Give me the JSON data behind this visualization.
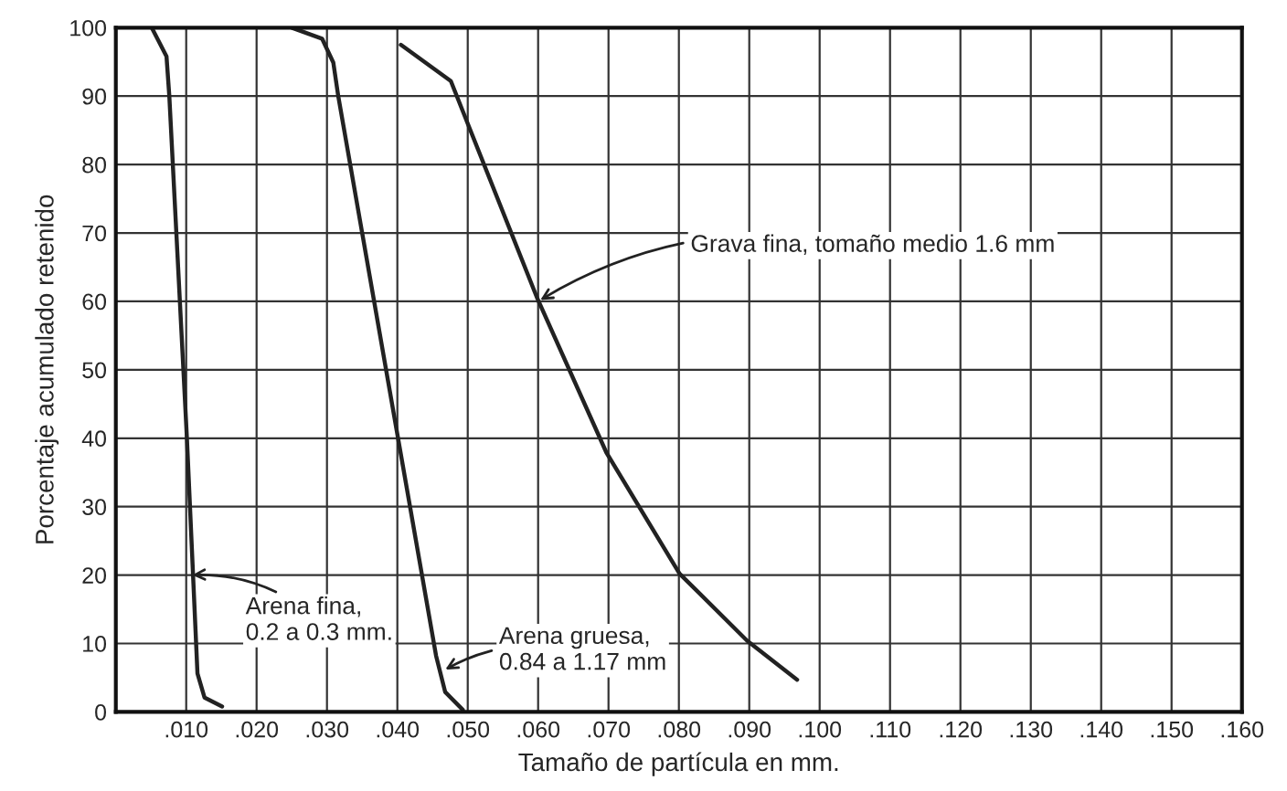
{
  "chart_data": {
    "type": "line",
    "xlabel": "Tamaño de partícula en mm.",
    "ylabel": "Porcentaje acumulado retenido",
    "xlim": [
      0,
      0.16
    ],
    "ylim": [
      0,
      100
    ],
    "xticks": [
      {
        "value": 0.01,
        "label": ".010"
      },
      {
        "value": 0.02,
        "label": ".020"
      },
      {
        "value": 0.03,
        "label": ".030"
      },
      {
        "value": 0.04,
        "label": ".040"
      },
      {
        "value": 0.05,
        "label": ".050"
      },
      {
        "value": 0.06,
        "label": ".060"
      },
      {
        "value": 0.07,
        "label": ".070"
      },
      {
        "value": 0.08,
        "label": ".080"
      },
      {
        "value": 0.09,
        "label": ".090"
      },
      {
        "value": 0.1,
        "label": ".100"
      },
      {
        "value": 0.11,
        "label": ".110"
      },
      {
        "value": 0.12,
        "label": ".120"
      },
      {
        "value": 0.13,
        "label": ".130"
      },
      {
        "value": 0.14,
        "label": ".140"
      },
      {
        "value": 0.15,
        "label": ".150"
      },
      {
        "value": 0.16,
        "label": ".160"
      }
    ],
    "yticks": [
      0,
      10,
      20,
      30,
      40,
      50,
      60,
      70,
      80,
      90,
      100
    ],
    "grid": true,
    "marker": "none",
    "line_style": "solid",
    "series": [
      {
        "color": "#222222",
        "x": [
          0.0051,
          0.0072,
          0.0076,
          0.0101,
          0.0116,
          0.0126,
          0.0151
        ],
        "values": [
          100,
          95.8,
          90,
          40,
          5.6,
          2.1,
          0.8
        ]
      },
      {
        "color": "#222222",
        "x": [
          0.025,
          0.0293,
          0.0309,
          0.0316,
          0.0401,
          0.0455,
          0.0468,
          0.0493
        ],
        "values": [
          100,
          98.4,
          94.9,
          90,
          40,
          8.2,
          2.9,
          0.3
        ]
      },
      {
        "color": "#222222",
        "x": [
          0.0405,
          0.0476,
          0.0493,
          0.0599,
          0.0697,
          0.0801,
          0.0897,
          0.0968
        ],
        "values": [
          97.5,
          92.2,
          87.8,
          60.4,
          37.9,
          20.2,
          10.4,
          4.7
        ]
      }
    ],
    "annotations": [
      {
        "text": "Arena fina,\n0.2 a 0.3 mm.",
        "x": 0.0105,
        "y": 20
      },
      {
        "text": "Arena gruesa,\n0.84 a 1.17 mm",
        "x": 0.0465,
        "y": 6
      },
      {
        "text": "Grava fina, tomaño medio 1.6 mm",
        "x": 0.06,
        "y": 60
      }
    ]
  }
}
